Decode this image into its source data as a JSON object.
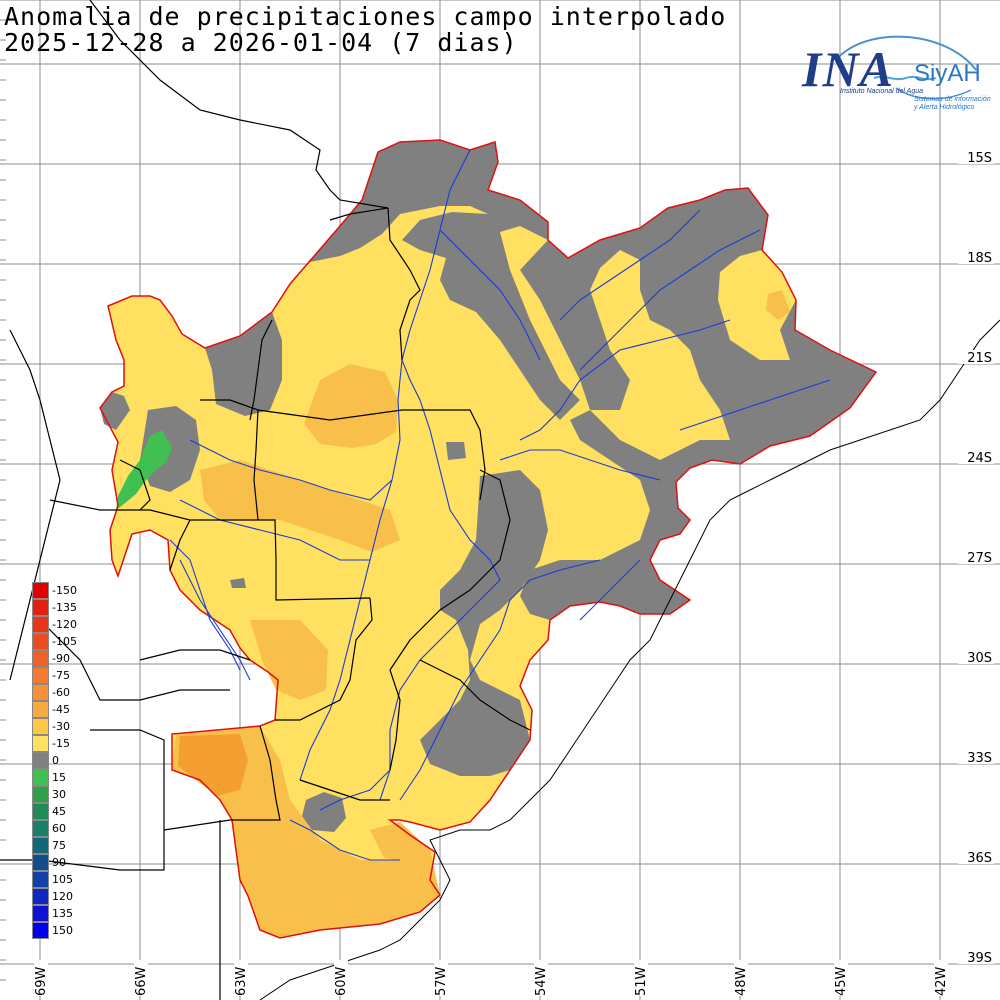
{
  "title": {
    "line1": "Anomalia de precipitaciones campo interpolado",
    "line2": "2025-12-28 a 2026-01-04 (7 dias)"
  },
  "logo": {
    "ina": "INA",
    "siyah": "SiyAH",
    "sub1": "Instituto Nacional del Agua",
    "sub2": "Sistemas de información",
    "sub3": "y Alerta Hidrológico"
  },
  "colors": {
    "grid": "#8c8c8c",
    "basin_outline": "#e01010",
    "neutral": "#808080",
    "dry_light": "#ffe060",
    "dry_medium": "#f8c04a",
    "dry_strong": "#f4a030",
    "wet_light": "#40c050",
    "rivers": "#1a3cd8",
    "borders": "#000000"
  },
  "legend": [
    {
      "label": "-150",
      "color": "#e00000"
    },
    {
      "label": "-135",
      "color": "#e42010"
    },
    {
      "label": "-120",
      "color": "#e83418"
    },
    {
      "label": "-105",
      "color": "#ec4a20"
    },
    {
      "label": "-90",
      "color": "#f06028"
    },
    {
      "label": "-75",
      "color": "#f47a30"
    },
    {
      "label": "-60",
      "color": "#f8923a"
    },
    {
      "label": "-45",
      "color": "#f8aa40"
    },
    {
      "label": "-30",
      "color": "#fcc84a"
    },
    {
      "label": "-15",
      "color": "#ffe060"
    },
    {
      "label": "0",
      "color": "#808080"
    },
    {
      "label": "15",
      "color": "#40c050"
    },
    {
      "label": "30",
      "color": "#30a048"
    },
    {
      "label": "45",
      "color": "#208a58"
    },
    {
      "label": "60",
      "color": "#18806a"
    },
    {
      "label": "75",
      "color": "#106878"
    },
    {
      "label": "90",
      "color": "#10508a"
    },
    {
      "label": "105",
      "color": "#1040a8"
    },
    {
      "label": "120",
      "color": "#1028c0"
    },
    {
      "label": "135",
      "color": "#1010d8"
    },
    {
      "label": "150",
      "color": "#0000f0"
    }
  ],
  "lat_labels": [
    "15S",
    "18S",
    "21S",
    "24S",
    "27S",
    "30S",
    "33S",
    "36S",
    "39S"
  ],
  "lon_labels": [
    "69W",
    "66W",
    "63W",
    "60W",
    "57W",
    "54W",
    "51W",
    "48W",
    "45W",
    "42W"
  ]
}
